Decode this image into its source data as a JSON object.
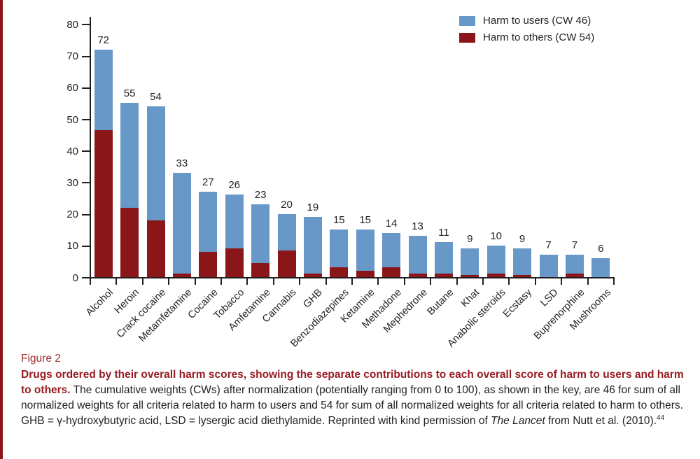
{
  "colors": {
    "left_strip": "#8b1518",
    "axis_and_text": "#231f20",
    "figure_label_red": "#a23134",
    "caption_heading_red": "#971c22",
    "bar_users_blue": "#6898c8",
    "bar_others_red": "#8b161a"
  },
  "legend": {
    "users_label": "Harm to users (CW 46)",
    "others_label": "Harm to others (CW 54)"
  },
  "chart_data": {
    "type": "bar",
    "stacked": true,
    "title": "",
    "xlabel": "",
    "ylabel": "",
    "ylim": [
      0,
      80
    ],
    "yticks": [
      0,
      10,
      20,
      30,
      40,
      50,
      60,
      70,
      80
    ],
    "grid": false,
    "legend_position": "top-right",
    "categories": [
      "Alcohol",
      "Heroin",
      "Crack cocaine",
      "Metamfetamine",
      "Cocaine",
      "Tobacco",
      "Amfetamine",
      "Cannabis",
      "GHB",
      "Benzodiazepines",
      "Ketamine",
      "Methadone",
      "Mephedrone",
      "Butane",
      "Khat",
      "Anabolic steroids",
      "Ecstasy",
      "LSD",
      "Buprenorphine",
      "Mushrooms"
    ],
    "totals": [
      72,
      55,
      54,
      33,
      27,
      26,
      23,
      20,
      19,
      15,
      15,
      14,
      13,
      11,
      9,
      10,
      9,
      7,
      7,
      6
    ],
    "total_labels": [
      "72",
      "55",
      "54",
      "33",
      "27",
      "26",
      "23",
      "20",
      "19",
      "15",
      "15",
      "14",
      "13",
      "11",
      "9",
      "10",
      "9",
      "7",
      "7",
      "6"
    ],
    "series": [
      {
        "name": "Harm to users (CW 46)",
        "color": "#6898c8",
        "values": [
          25.5,
          33,
          36,
          32,
          19,
          17,
          18.5,
          11.5,
          18,
          12,
          13,
          11,
          12,
          10,
          8.4,
          8.8,
          8.4,
          7,
          5.8,
          6
        ]
      },
      {
        "name": "Harm to others (CW 54)",
        "color": "#8b161a",
        "values": [
          46.5,
          22,
          18,
          1,
          8,
          9,
          4.5,
          8.5,
          1,
          3,
          2,
          3,
          1,
          1,
          0.6,
          1.2,
          0.6,
          0,
          1.2,
          0
        ]
      }
    ]
  },
  "caption": {
    "figure_label": "Figure 2",
    "bold": "Drugs ordered by their overall harm scores, showing the separate contributions to each overall score of harm to users and harm to others.",
    "text_a": " The cumulative weights (CWs) after normalization (potentially ranging from 0 to 100), as shown in the key, are 46 for sum of all normalized weights for all criteria related to harm to users and 54 for sum of all normalized weights for all criteria related to harm to others. GHB = γ-hydroxybutyric acid, LSD = lysergic acid diethylamide. Reprinted with kind permission of ",
    "italic": "The Lancet",
    "text_b": " from Nutt et al. (2010).",
    "superscript": "44"
  }
}
